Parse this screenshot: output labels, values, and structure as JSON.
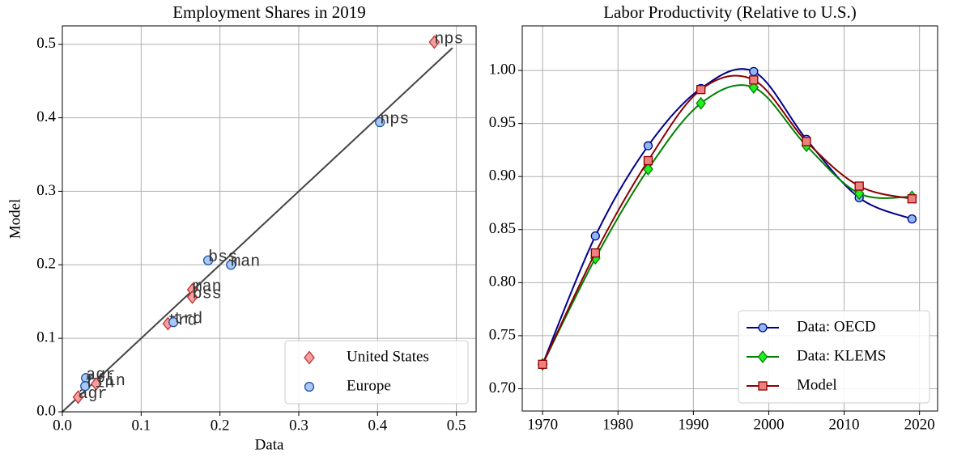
{
  "chart_data": [
    {
      "type": "scatter",
      "title": "Employment Shares in 2019",
      "xlabel": "Data",
      "ylabel": "Model",
      "xlim": [
        0,
        0.525
      ],
      "ylim": [
        0,
        0.525
      ],
      "xticks": [
        {
          "value": 0,
          "label": "0.0"
        },
        0.1,
        0.2,
        0.3,
        0.4,
        0.5
      ],
      "yticks": [
        {
          "value": 0,
          "label": "0.0"
        },
        0.1,
        0.2,
        0.3,
        0.4,
        0.5
      ],
      "grid": true,
      "legend": "lower right",
      "reference_line": [
        0,
        0.495
      ],
      "reference_color": "#444444",
      "series": [
        {
          "name": "United States",
          "marker": "diamond",
          "color": "#f4a0a0",
          "edge_color": "#c03030",
          "x": [
            0.472,
            0.165,
            0.165,
            0.134,
            0.043,
            0.02
          ],
          "values": [
            0.503,
            0.166,
            0.156,
            0.12,
            0.038,
            0.02
          ],
          "point_labels": [
            "nps",
            "man",
            "bss",
            "trd",
            "fin",
            "agr"
          ]
        },
        {
          "name": "Europe",
          "marker": "circle",
          "color": "#a8c8f8",
          "edge_color": "#2050a0",
          "x": [
            0.403,
            0.214,
            0.185,
            0.141,
            0.03,
            0.029
          ],
          "values": [
            0.394,
            0.2,
            0.206,
            0.122,
            0.046,
            0.035
          ],
          "point_labels": [
            "nps",
            "man",
            "bss",
            "trd",
            "agr",
            "fin"
          ]
        }
      ]
    },
    {
      "type": "line",
      "title": "Labor Productivity (Relative to U.S.)",
      "x": [
        1970,
        1977,
        1984,
        1991,
        1998,
        2005,
        2012,
        2019
      ],
      "xlim": [
        1967.3,
        2022.4
      ],
      "ylim": [
        0.679,
        1.042
      ],
      "xticks": [
        1970,
        1980,
        1990,
        2000,
        2010,
        2020
      ],
      "yticks": [
        {
          "value": 0.7,
          "label": "0.70"
        },
        0.75,
        {
          "value": 0.8,
          "label": "0.80"
        },
        0.85,
        {
          "value": 0.9,
          "label": "0.90"
        },
        0.95,
        {
          "value": 1.0,
          "label": "1.00"
        }
      ],
      "grid": true,
      "legend": "lower right",
      "smooth": true,
      "series": [
        {
          "name": "Data: OECD",
          "marker": "circle",
          "color": "#00008b",
          "marker_color": "#8fb8f0",
          "values": [
            0.723,
            0.844,
            0.929,
            0.983,
            0.999,
            0.935,
            0.88,
            0.86
          ]
        },
        {
          "name": "Data: KLEMS",
          "marker": "diamond",
          "color": "#008000",
          "marker_color": "#22ee22",
          "values": [
            0.723,
            0.823,
            0.907,
            0.969,
            0.984,
            0.929,
            0.884,
            0.881
          ]
        },
        {
          "name": "Model",
          "marker": "square",
          "color": "#8b0000",
          "marker_color": "#f08080",
          "values": [
            0.723,
            0.828,
            0.915,
            0.982,
            0.991,
            0.933,
            0.891,
            0.879
          ]
        }
      ]
    }
  ]
}
